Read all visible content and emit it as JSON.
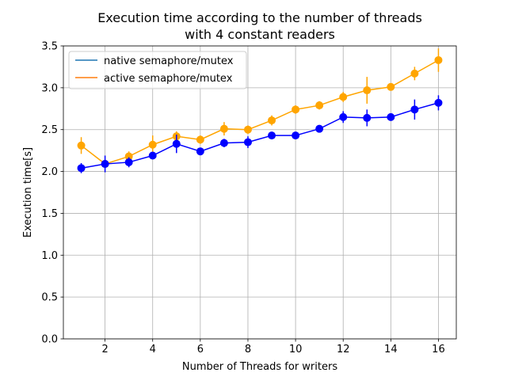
{
  "chart_data": {
    "type": "line",
    "title_lines": [
      "Execution time according to the number of threads",
      "with 4 constant readers"
    ],
    "xlabel": "Number of Threads for writers",
    "ylabel": "Execution time[s]",
    "xlim": [
      0.25,
      16.75
    ],
    "ylim": [
      0.0,
      3.5
    ],
    "xticks": [
      2,
      4,
      6,
      8,
      10,
      12,
      14,
      16
    ],
    "yticks": [
      0.0,
      0.5,
      1.0,
      1.5,
      2.0,
      2.5,
      3.0,
      3.5
    ],
    "xtick_labels": [
      "2",
      "4",
      "6",
      "8",
      "10",
      "12",
      "14",
      "16"
    ],
    "ytick_labels": [
      "0.0",
      "0.5",
      "1.0",
      "1.5",
      "2.0",
      "2.5",
      "3.0",
      "3.5"
    ],
    "grid": true,
    "legend_position": "upper-left",
    "legend": [
      {
        "label": "native semaphore/mutex",
        "color": "#1f77b4"
      },
      {
        "label": "active semaphore/mutex",
        "color": "#ff7f0e"
      }
    ],
    "x": [
      1,
      2,
      3,
      4,
      5,
      6,
      7,
      8,
      9,
      10,
      11,
      12,
      13,
      14,
      15,
      16
    ],
    "series": [
      {
        "name": "active semaphore/mutex",
        "color": "#ffa500",
        "values": [
          2.31,
          2.09,
          2.18,
          2.32,
          2.42,
          2.38,
          2.51,
          2.5,
          2.61,
          2.74,
          2.79,
          2.89,
          2.97,
          3.01,
          3.17,
          3.33
        ],
        "errors": [
          0.1,
          0.05,
          0.06,
          0.11,
          0.06,
          0.05,
          0.08,
          0.05,
          0.06,
          0.05,
          0.05,
          0.06,
          0.16,
          0.04,
          0.08,
          0.14
        ]
      },
      {
        "name": "native semaphore/mutex",
        "color": "#0000ff",
        "values": [
          2.04,
          2.09,
          2.11,
          2.19,
          2.33,
          2.24,
          2.34,
          2.35,
          2.43,
          2.43,
          2.51,
          2.65,
          2.64,
          2.65,
          2.74,
          2.82
        ],
        "errors": [
          0.06,
          0.1,
          0.06,
          0.04,
          0.11,
          0.03,
          0.05,
          0.07,
          0.04,
          0.04,
          0.03,
          0.07,
          0.1,
          0.04,
          0.12,
          0.09
        ]
      }
    ]
  }
}
